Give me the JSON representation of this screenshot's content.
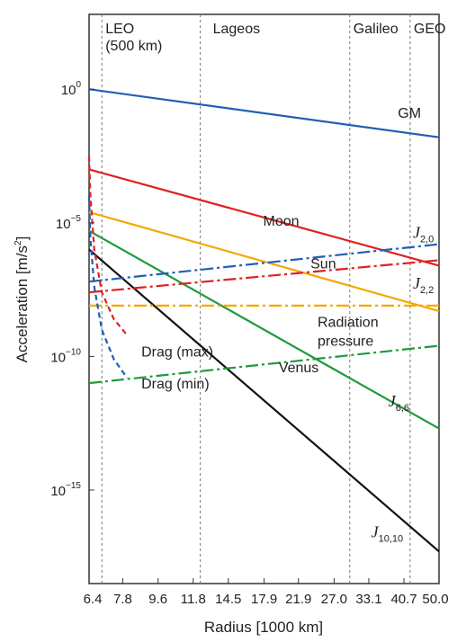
{
  "chart_data": {
    "type": "line",
    "title": "",
    "xlabel": "Radius [1000 km]",
    "ylabel": "Acceleration [m/s²]",
    "ylabel_base": "Acceleration [m/s",
    "ylabel_sup": "2",
    "ylabel_end": "]",
    "yscale": "log",
    "xlim": [
      6.4,
      50.0
    ],
    "ylim_log10": [
      -18.5,
      2.8
    ],
    "x_ticks": [
      "6.4",
      "7.8",
      "9.6",
      "11.8",
      "14.5",
      "17.9",
      "21.9",
      "27.0",
      "33.1",
      "40.7",
      "50.0"
    ],
    "y_ticks": [
      {
        "base": "10",
        "exp": "0",
        "log10": 0
      },
      {
        "base": "10",
        "exp": "−5",
        "log10": -5
      },
      {
        "base": "10",
        "exp": "−10",
        "log10": -10
      },
      {
        "base": "10",
        "exp": "−15",
        "log10": -15
      }
    ],
    "orbits": [
      {
        "name": "LEO",
        "sub": "(500 km)",
        "x": 6.9
      },
      {
        "name": "Lageos",
        "x": 12.3
      },
      {
        "name": "Galileo",
        "x": 29.6
      },
      {
        "name": "GEO",
        "x": 42.2
      }
    ],
    "series": [
      {
        "label": "GM",
        "color": "#1f5fb4",
        "dash": "solid",
        "points": [
          [
            6.4,
            0.0
          ],
          [
            50.0,
            -1.8
          ]
        ]
      },
      {
        "label_base": "J",
        "label_sub": "2,0",
        "color": "#e02020",
        "dash": "solid",
        "points": [
          [
            6.4,
            -3.0
          ],
          [
            50.0,
            -6.6
          ]
        ]
      },
      {
        "label_base": "J",
        "label_sub": "2,2",
        "color": "#f4a800",
        "dash": "solid",
        "points": [
          [
            6.4,
            -4.6
          ],
          [
            50.0,
            -8.3
          ]
        ]
      },
      {
        "label_base": "J",
        "label_sub": "6,6",
        "color": "#1f9a3a",
        "dash": "solid",
        "points": [
          [
            6.4,
            -5.3
          ],
          [
            50.0,
            -12.7
          ]
        ]
      },
      {
        "label_base": "J",
        "label_sub": "10,10",
        "color": "#111111",
        "dash": "solid",
        "points": [
          [
            6.4,
            -6.0
          ],
          [
            50.0,
            -17.3
          ]
        ]
      },
      {
        "label": "Moon",
        "color": "#1f5fb4",
        "dash": "dashdot",
        "points": [
          [
            6.4,
            -7.2
          ],
          [
            50.0,
            -5.8
          ]
        ]
      },
      {
        "label": "Sun",
        "color": "#e02020",
        "dash": "dashdot",
        "points": [
          [
            6.4,
            -7.6
          ],
          [
            50.0,
            -6.4
          ]
        ]
      },
      {
        "label": "Radiation pressure",
        "label_lines": [
          "Radiation",
          "pressure"
        ],
        "color": "#f4a800",
        "dash": "dashdot",
        "points": [
          [
            6.4,
            -8.1
          ],
          [
            50.0,
            -8.1
          ]
        ]
      },
      {
        "label": "Venus",
        "color": "#1f9a3a",
        "dash": "dashdot",
        "points": [
          [
            6.4,
            -11.0
          ],
          [
            50.0,
            -9.6
          ]
        ]
      },
      {
        "label": "Drag (max)",
        "color": "#e02020",
        "dash": "dashed",
        "points": [
          [
            6.4,
            -2.5
          ],
          [
            6.45,
            -4.0
          ],
          [
            6.6,
            -6.0
          ],
          [
            6.9,
            -7.6
          ],
          [
            7.4,
            -8.6
          ],
          [
            8.0,
            -9.2
          ]
        ]
      },
      {
        "label": "Drag (min)",
        "color": "#1f5fb4",
        "dash": "dashed",
        "points": [
          [
            6.4,
            -4.0
          ],
          [
            6.45,
            -5.6
          ],
          [
            6.6,
            -7.4
          ],
          [
            6.9,
            -9.0
          ],
          [
            7.4,
            -10.1
          ],
          [
            8.0,
            -10.8
          ]
        ]
      }
    ]
  }
}
